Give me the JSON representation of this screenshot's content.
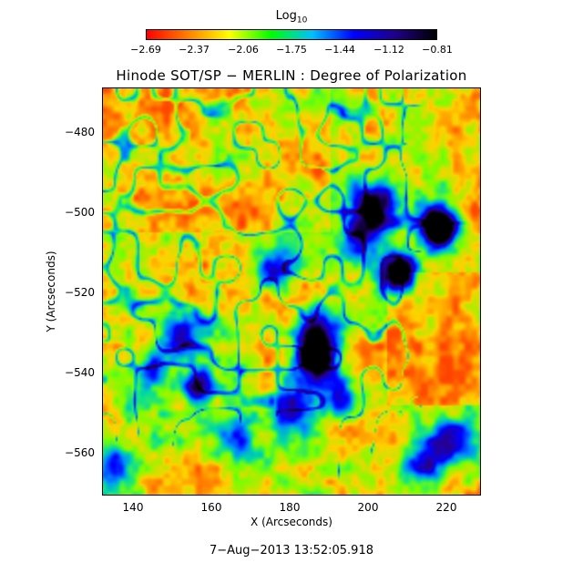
{
  "colorbar": {
    "title": "Log",
    "title_sub": "10",
    "tick_labels": [
      "−2.69",
      "−2.37",
      "−2.06",
      "−1.75",
      "−1.44",
      "−1.12",
      "−0.81"
    ],
    "colors": [
      "#ff0000",
      "#ff8000",
      "#ffff00",
      "#00ff00",
      "#00c0ff",
      "#0000ff",
      "#20008a",
      "#000000"
    ]
  },
  "plot": {
    "title": "Hinode SOT/SP − MERLIN : Degree of Polarization",
    "xlabel": "X (Arcseconds)",
    "ylabel": "Y (Arcseconds)",
    "x_ticks": [
      "140",
      "160",
      "180",
      "200",
      "220"
    ],
    "y_ticks": [
      "−480",
      "−500",
      "−520",
      "−540",
      "−560"
    ]
  },
  "timestamp": "7−Aug−2013 13:52:05.918"
}
